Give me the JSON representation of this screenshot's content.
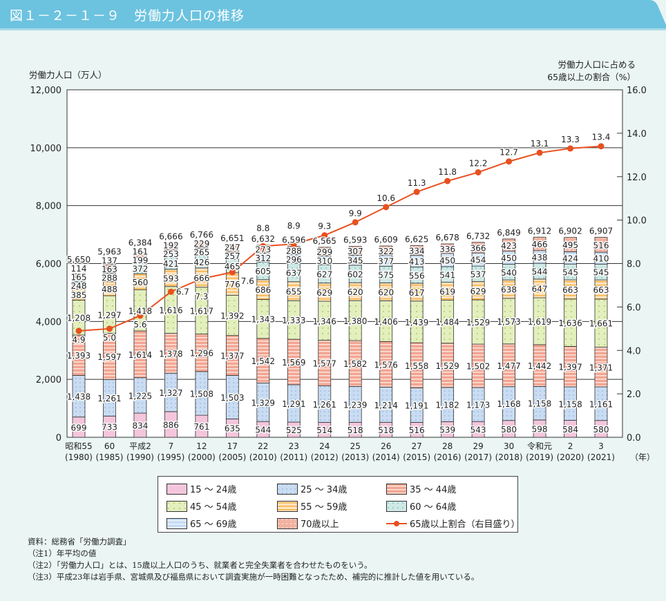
{
  "header": {
    "title": "図１－２－１－９　労働力人口の推移"
  },
  "notes": [
    "資料：総務省「労働力調査」",
    "（注1）年平均の値",
    "（注2）「労働力人口」とは、15歳以上人口のうち、就業者と完全失業者を合わせたものをいう。",
    "（注3）平成23年は岩手県、宮城県及び福島県において調査実施が一時困難となったため、補完的に推計した値を用いている。"
  ],
  "chart_data": {
    "type": "bar",
    "stacked": true,
    "ylabel": "労働力人口（万人）",
    "y2label_line1": "労働力人口に占める",
    "y2label_line2": "65歳以上の割合（%）",
    "ylim": [
      0,
      12000
    ],
    "yticks": [
      "0",
      "2,000",
      "4,000",
      "6,000",
      "8,000",
      "10,000",
      "12,000"
    ],
    "y2lim": [
      0,
      16
    ],
    "y2ticks": [
      "0.0",
      "2.0",
      "4.0",
      "6.0",
      "8.0",
      "10.0",
      "12.0",
      "14.0",
      "16.0"
    ],
    "grid": true,
    "legend_position": "bottom",
    "x_unit": "（年）",
    "categories": [
      [
        "昭和55",
        "(1980)"
      ],
      [
        "60",
        "(1985)"
      ],
      [
        "平成2",
        "(1990)"
      ],
      [
        "7",
        "(1995)"
      ],
      [
        "12",
        "(2000)"
      ],
      [
        "17",
        "(2005)"
      ],
      [
        "22",
        "(2010)"
      ],
      [
        "23",
        "(2011)"
      ],
      [
        "24",
        "(2012)"
      ],
      [
        "25",
        "(2013)"
      ],
      [
        "26",
        "(2014)"
      ],
      [
        "27",
        "(2015)"
      ],
      [
        "28",
        "(2016)"
      ],
      [
        "29",
        "(2017)"
      ],
      [
        "30",
        "(2018)"
      ],
      [
        "令和元",
        "(2019)"
      ],
      [
        "2",
        "(2020)"
      ],
      [
        "3",
        "(2021)"
      ]
    ],
    "totals": [
      5650,
      5963,
      6384,
      6666,
      6766,
      6651,
      6632,
      6596,
      6565,
      6593,
      6609,
      6625,
      6678,
      6732,
      6849,
      6912,
      6902,
      6907
    ],
    "series": [
      {
        "name": "15 ～ 24歳",
        "color": "#f4c6dc",
        "pattern": "plain",
        "values": [
          699,
          733,
          834,
          886,
          761,
          635,
          544,
          525,
          514,
          518,
          518,
          516,
          539,
          543,
          580,
          598,
          584,
          580
        ]
      },
      {
        "name": "25 ～ 34歳",
        "color": "#c9dcf2",
        "pattern": "dots",
        "values": [
          1438,
          1261,
          1225,
          1327,
          1508,
          1503,
          1329,
          1291,
          1261,
          1239,
          1214,
          1191,
          1182,
          1173,
          1168,
          1158,
          1158,
          1161
        ]
      },
      {
        "name": "35 ～ 44歳",
        "color": "#f2a592",
        "pattern": "hstripes",
        "values": [
          1393,
          1597,
          1614,
          1378,
          1296,
          1377,
          1542,
          1569,
          1577,
          1582,
          1576,
          1558,
          1529,
          1502,
          1477,
          1442,
          1397,
          1371
        ]
      },
      {
        "name": "45 ～ 54歳",
        "color": "#e3efbd",
        "pattern": "greendots",
        "values": [
          1208,
          1297,
          1418,
          1616,
          1617,
          1392,
          1343,
          1333,
          1346,
          1380,
          1406,
          1439,
          1484,
          1529,
          1573,
          1619,
          1636,
          1661
        ]
      },
      {
        "name": "55 ～ 59歳",
        "color": "#fde3c0",
        "pattern": "orangestripes",
        "values": [
          385,
          488,
          560,
          593,
          666,
          776,
          686,
          655,
          629,
          620,
          620,
          617,
          619,
          629,
          638,
          647,
          663,
          663
        ]
      },
      {
        "name": "60 ～ 64歳",
        "color": "#cfe9e6",
        "pattern": "tealdots",
        "values": [
          248,
          288,
          372,
          421,
          426,
          465,
          605,
          637,
          627,
          602,
          575,
          556,
          541,
          537,
          540,
          544,
          545,
          545
        ]
      },
      {
        "name": "65 ～ 69歳",
        "color": "#c5dcf3",
        "pattern": "bluestripes",
        "values": [
          165,
          163,
          199,
          253,
          265,
          257,
          312,
          296,
          310,
          345,
          377,
          413,
          450,
          454,
          450,
          438,
          424,
          410
        ]
      },
      {
        "name": "70歳以上",
        "color": "#f2b2a0",
        "pattern": "whitedots",
        "values": [
          114,
          137,
          161,
          192,
          229,
          247,
          273,
          288,
          299,
          307,
          322,
          334,
          336,
          366,
          423,
          466,
          495,
          516
        ]
      }
    ],
    "line": {
      "name": "65歳以上割合（右目盛り）",
      "color": "#e8501f",
      "axis": "right",
      "values": [
        4.9,
        5.0,
        5.6,
        6.7,
        7.3,
        7.6,
        8.8,
        8.9,
        9.3,
        9.9,
        10.6,
        11.3,
        11.8,
        12.2,
        12.7,
        13.1,
        13.3,
        13.4
      ]
    }
  }
}
